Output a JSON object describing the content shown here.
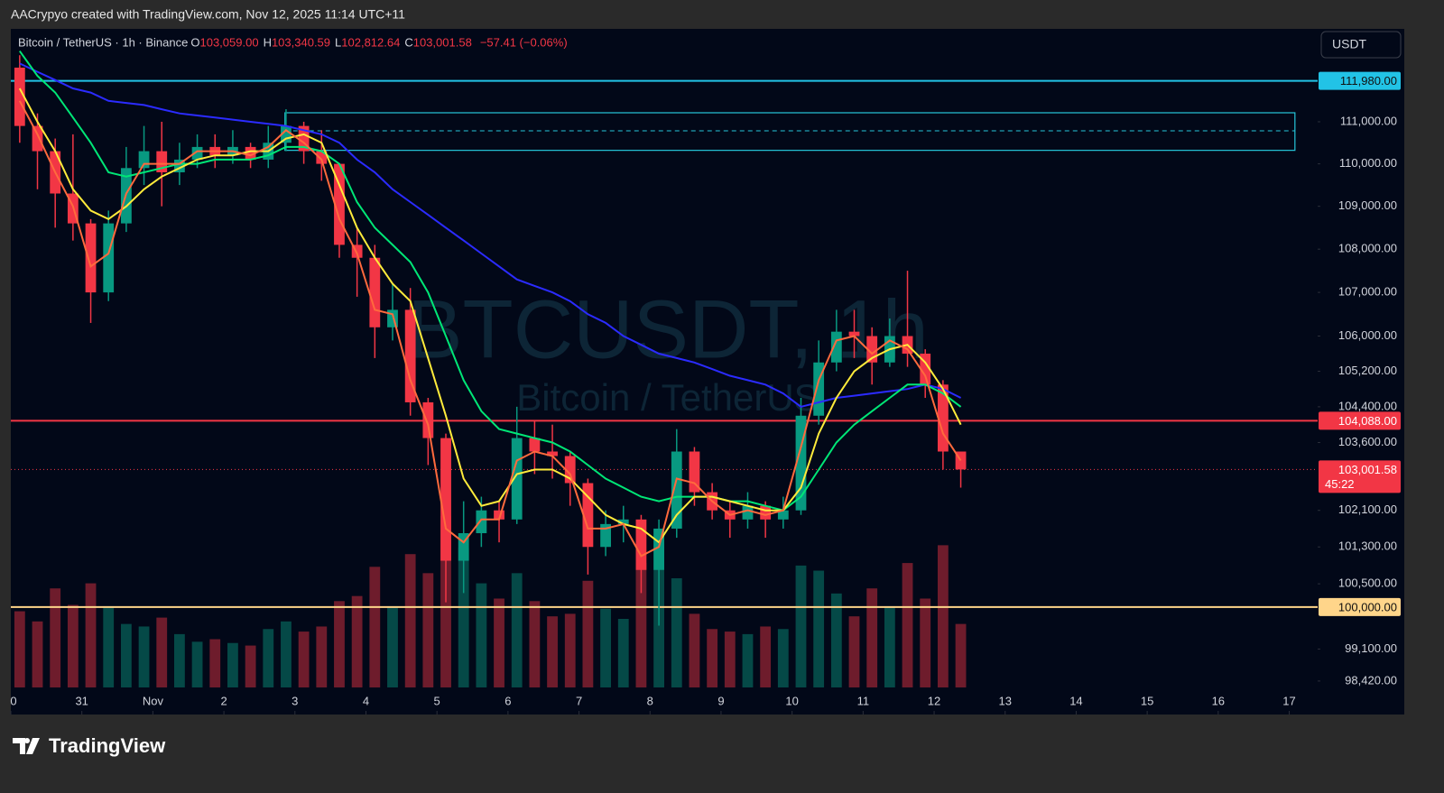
{
  "header": "AACrypyo created with TradingView.com, Nov 12, 2025 11:14 UTC+11",
  "logo": "TradingView",
  "currency": "USDT",
  "chart_data": {
    "type": "candlestick",
    "legend": {
      "symbol": "Bitcoin / TetherUS · 1h · Binance",
      "ohlc": [
        {
          "key": "O",
          "value": 103059,
          "label": "103,059.00"
        },
        {
          "key": "H",
          "value": 103340.59,
          "label": "103,340.59"
        },
        {
          "key": "L",
          "value": 102812.64,
          "label": "102,812.64"
        },
        {
          "key": "C",
          "value": 103001.58,
          "label": "103,001.58"
        }
      ],
      "change": "−57.41 (−0.06%)"
    },
    "watermark": [
      "BTCUSDT, 1h",
      "Bitcoin / TetherUS"
    ],
    "log_scale": true,
    "up_color": "#089981",
    "down_color": "#f23645",
    "xlim": [
      0,
      18.4
    ],
    "ylim": [
      97714,
      113240
    ],
    "xticks": [
      0,
      {
        "value": 1,
        "label": "31"
      },
      {
        "value": 2,
        "label": "Nov"
      },
      {
        "value": 3,
        "label": "2"
      },
      {
        "value": 4,
        "label": "3"
      },
      {
        "value": 5,
        "label": "4"
      },
      {
        "value": 6,
        "label": "5"
      },
      {
        "value": 7,
        "label": "6"
      },
      {
        "value": 8,
        "label": "7"
      },
      {
        "value": 9,
        "label": "8"
      },
      {
        "value": 10,
        "label": "9"
      },
      {
        "value": 11,
        "label": "10"
      },
      {
        "value": 12,
        "label": "11"
      },
      {
        "value": 13,
        "label": "12"
      },
      {
        "value": 14,
        "label": "13"
      },
      {
        "value": 15,
        "label": "14"
      },
      {
        "value": 16,
        "label": "15"
      },
      {
        "value": 17,
        "label": "16"
      },
      {
        "value": 18,
        "label": "17"
      }
    ],
    "yticks": [
      {
        "value": 111000,
        "label": "111,000.00"
      },
      {
        "value": 110000,
        "label": "110,000.00"
      },
      {
        "value": 109000,
        "label": "109,000.00"
      },
      {
        "value": 108000,
        "label": "108,000.00"
      },
      {
        "value": 107000,
        "label": "107,000.00"
      },
      {
        "value": 106000,
        "label": "106,000.00"
      },
      {
        "value": 105200,
        "label": "105,200.00"
      },
      {
        "value": 104400,
        "label": "104,400.00"
      },
      {
        "value": 103600,
        "label": "103,600.00"
      },
      {
        "value": 102100,
        "label": "102,100.00"
      },
      {
        "value": 101300,
        "label": "101,300.00"
      },
      {
        "value": 100500,
        "label": "100,500.00"
      },
      {
        "value": 99100,
        "label": "99,100.00"
      },
      {
        "value": 98420,
        "label": "98,420.00"
      }
    ],
    "x": [
      0.125,
      0.375,
      0.625,
      0.875,
      1.125,
      1.375,
      1.625,
      1.875,
      2.125,
      2.375,
      2.625,
      2.875,
      3.125,
      3.375,
      3.625,
      3.875,
      4.125,
      4.375,
      4.625,
      4.875,
      5.125,
      5.375,
      5.625,
      5.875,
      6.125,
      6.375,
      6.625,
      6.875,
      7.125,
      7.375,
      7.625,
      7.875,
      8.125,
      8.375,
      8.625,
      8.875,
      9.125,
      9.375,
      9.625,
      9.875,
      10.125,
      10.375,
      10.625,
      10.875,
      11.125,
      11.375,
      11.625,
      11.875,
      12.125,
      12.375,
      12.625,
      12.875,
      13.125,
      13.375
    ],
    "open": [
      112300,
      110900,
      110300,
      109300,
      108600,
      107000,
      108600,
      109900,
      110300,
      109800,
      110100,
      110400,
      110200,
      110400,
      110100,
      110500,
      110900,
      110300,
      110000,
      108100,
      107800,
      106200,
      106600,
      104500,
      103700,
      101000,
      101600,
      102100,
      101900,
      103700,
      103400,
      103300,
      102700,
      101300,
      101800,
      101900,
      100800,
      101700,
      103400,
      102500,
      102100,
      101900,
      102200,
      101900,
      102100,
      104200,
      105400,
      106100,
      106000,
      105400,
      106000,
      105600,
      104900,
      103400
    ],
    "high": [
      112600,
      111200,
      110600,
      110700,
      108700,
      108900,
      110400,
      110900,
      111000,
      110500,
      110700,
      110700,
      110800,
      110500,
      110900,
      111300,
      111000,
      110800,
      110000,
      108500,
      108100,
      107200,
      107100,
      104600,
      103800,
      102300,
      102400,
      102300,
      104400,
      104100,
      104000,
      103400,
      102800,
      102100,
      102200,
      102000,
      101900,
      103900,
      103500,
      102700,
      102300,
      102500,
      102300,
      102400,
      104600,
      105900,
      106600,
      106600,
      106200,
      106400,
      107500,
      105700,
      105000,
      103340.59
    ],
    "low": [
      110500,
      109400,
      108500,
      108200,
      106300,
      106800,
      108400,
      109500,
      109000,
      109500,
      109900,
      109900,
      110000,
      109900,
      109900,
      110300,
      110000,
      109600,
      107800,
      106900,
      105500,
      105900,
      104200,
      103100,
      100100,
      100300,
      101300,
      101400,
      101800,
      102900,
      102800,
      102200,
      100700,
      101100,
      101400,
      100300,
      99600,
      101500,
      102200,
      101900,
      101500,
      101700,
      101500,
      101700,
      102000,
      104000,
      105200,
      105500,
      104900,
      105300,
      105300,
      104600,
      103000,
      102600
    ],
    "close": [
      110900,
      110300,
      109300,
      108600,
      107000,
      108600,
      109900,
      110300,
      109800,
      110100,
      110400,
      110200,
      110400,
      110100,
      110500,
      110900,
      110300,
      110000,
      108100,
      107800,
      106200,
      106600,
      104500,
      103700,
      101000,
      101600,
      102100,
      101900,
      103700,
      103400,
      103300,
      102700,
      101300,
      101800,
      101900,
      100800,
      101700,
      103400,
      102500,
      102100,
      101900,
      102200,
      101900,
      102100,
      104200,
      105400,
      106100,
      106000,
      105400,
      106000,
      105600,
      104900,
      103400,
      103001.58
    ],
    "volume": [
      6000,
      5200,
      7800,
      6500,
      8200,
      6400,
      5000,
      4800,
      5500,
      4200,
      3600,
      3800,
      3500,
      3300,
      4600,
      5200,
      4400,
      4800,
      6800,
      7200,
      9500,
      6400,
      10500,
      9000,
      13500,
      11000,
      8200,
      7000,
      9000,
      6800,
      5600,
      5800,
      8400,
      6200,
      5400,
      9800,
      12500,
      8600,
      5800,
      4600,
      4400,
      4200,
      4800,
      4600,
      9600,
      9200,
      7400,
      5600,
      7800,
      6400,
      9800,
      7000,
      11200,
      5000
    ],
    "lines": [
      {
        "color": "#2b2bff",
        "values": [
          112400,
          112200,
          112000,
          111800,
          111700,
          111500,
          111450,
          111400,
          111300,
          111200,
          111150,
          111100,
          111050,
          111000,
          110950,
          110900,
          110800,
          110700,
          110500,
          110100,
          109800,
          109400,
          109100,
          108800,
          108500,
          108200,
          107900,
          107600,
          107300,
          107150,
          107000,
          106800,
          106500,
          106300,
          106000,
          105800,
          105600,
          105500,
          105400,
          105250,
          105100,
          105000,
          104900,
          104700,
          104400,
          104500,
          104600,
          104650,
          104700,
          104750,
          104800,
          104900,
          104800,
          104600
        ]
      },
      {
        "color": "#00e676",
        "values": [
          112700,
          112100,
          111700,
          111100,
          110500,
          109800,
          109700,
          109800,
          109900,
          110000,
          110000,
          110100,
          110100,
          110100,
          110200,
          110400,
          110400,
          110300,
          110000,
          109100,
          108500,
          108100,
          107700,
          107000,
          106000,
          105000,
          104300,
          103900,
          103800,
          103700,
          103600,
          103400,
          103100,
          102800,
          102600,
          102400,
          102300,
          102400,
          102400,
          102400,
          102300,
          102300,
          102200,
          102100,
          102400,
          103000,
          103600,
          104000,
          104300,
          104600,
          104900,
          104900,
          104700,
          104400
        ]
      },
      {
        "color": "#ffeb3b",
        "values": [
          111800,
          111000,
          110300,
          109400,
          108900,
          108700,
          109000,
          109400,
          109700,
          109900,
          110100,
          110200,
          110200,
          110300,
          110300,
          110600,
          110700,
          110500,
          109500,
          108500,
          107800,
          107200,
          106800,
          105500,
          104200,
          102800,
          102200,
          102300,
          102900,
          103000,
          103000,
          102800,
          102400,
          102000,
          101800,
          101700,
          101400,
          102000,
          102400,
          102400,
          102300,
          102200,
          102100,
          102100,
          102600,
          103800,
          104600,
          105200,
          105500,
          105700,
          105800,
          105400,
          104800,
          104000
        ]
      },
      {
        "color": "#ff6a3d",
        "values": [
          111500,
          110700,
          109800,
          109000,
          107600,
          107900,
          109300,
          110000,
          110000,
          110000,
          110300,
          110300,
          110300,
          110200,
          110400,
          110800,
          110500,
          110100,
          108700,
          107900,
          106600,
          106500,
          105000,
          104000,
          101700,
          101400,
          101900,
          101900,
          103200,
          103400,
          103300,
          102900,
          101700,
          101700,
          101800,
          101100,
          101300,
          102800,
          102700,
          102300,
          102000,
          102100,
          102000,
          102100,
          103500,
          105000,
          105900,
          106000,
          105600,
          105900,
          105700,
          105100,
          103800,
          103200
        ]
      }
    ],
    "zone": {
      "x": [
        3.86,
        18.08
      ],
      "y": [
        110320,
        111215
      ],
      "mid": 110785,
      "color": "#26c6da"
    },
    "levels": [
      {
        "value": 111980,
        "label": "111,980.00",
        "color": "#22c3e6"
      },
      {
        "value": 104088,
        "label": "104,088.00",
        "color": "#f23645"
      },
      {
        "value": 100000,
        "label": "100,000.00",
        "color": "#ffd58a"
      }
    ],
    "last_price": {
      "value": 103001.58,
      "label": "103,001.58",
      "countdown": "45:22",
      "color": "#f23645"
    }
  }
}
